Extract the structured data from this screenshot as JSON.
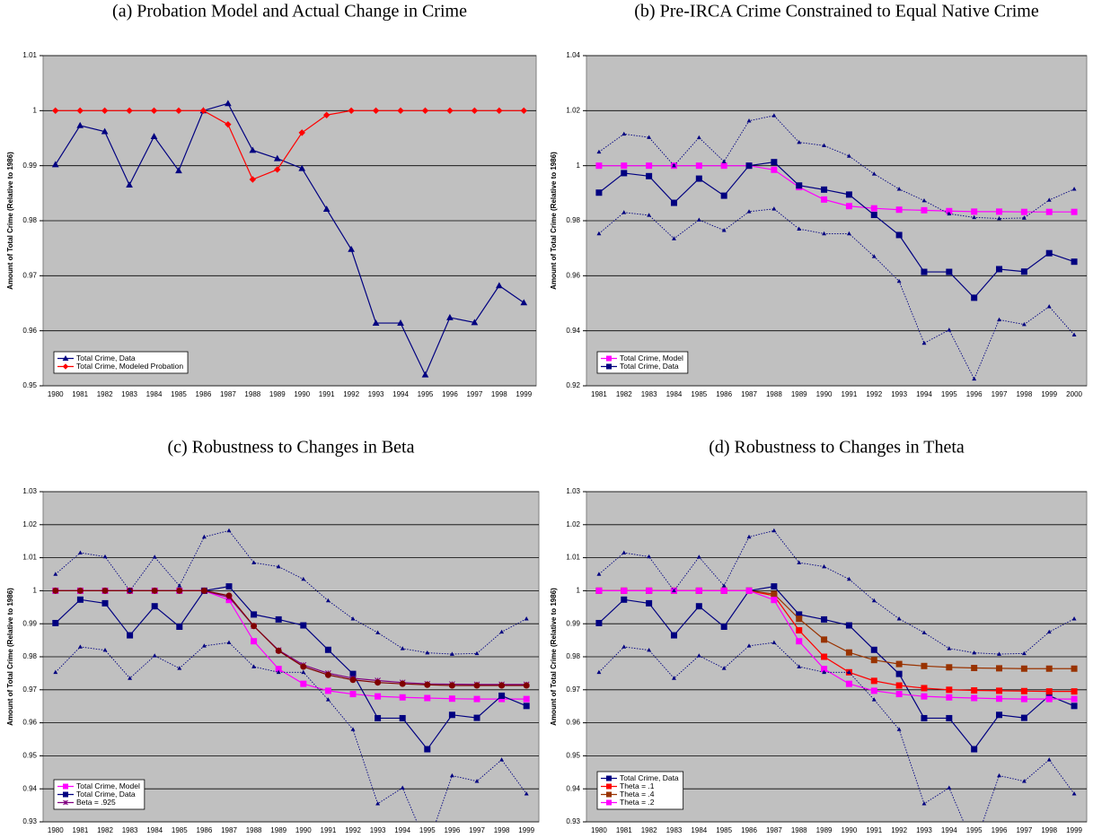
{
  "chart_data": [
    {
      "type": "line",
      "title": "(a) Probation Model and Actual Change in Crime",
      "y_label": "Amount of Total Crime (Relative to 1986)",
      "categories": [
        "1980",
        "1981",
        "1982",
        "1983",
        "1984",
        "1985",
        "1986",
        "1987",
        "1988",
        "1989",
        "1990",
        "1991",
        "1992",
        "1993",
        "1994",
        "1995",
        "1996",
        "1997",
        "1998",
        "1999"
      ],
      "ylim": [
        0.95,
        1.01
      ],
      "yticks": [
        0.95,
        0.96,
        0.97,
        0.98,
        0.99,
        1,
        1.01
      ],
      "grid": true,
      "legend": "lower left",
      "series": [
        {
          "name": "Total Crime, Data",
          "color": "#000080",
          "marker": "triangle",
          "dash": "solid",
          "values": [
            0.9902,
            0.9973,
            0.9962,
            0.9865,
            0.9953,
            0.9891,
            1,
            1.0013,
            0.9928,
            0.9913,
            0.9895,
            0.9821,
            0.9748,
            0.9614,
            0.9614,
            0.952,
            0.9624,
            0.9615,
            0.9682,
            0.9651
          ]
        },
        {
          "name": "Total Crime, Modeled Probation",
          "color": "#ff0000",
          "marker": "diamond",
          "dash": "solid",
          "values": [
            1,
            1,
            1,
            1,
            1,
            1,
            1,
            0.9975,
            0.9875,
            0.9893,
            0.996,
            0.9992,
            1,
            1,
            1,
            1,
            1,
            1,
            1,
            1
          ]
        }
      ]
    },
    {
      "type": "line",
      "title": "(b) Pre-IRCA Crime Constrained to Equal Native Crime",
      "y_label": "Amount of Total Crime (Relative to 1986)",
      "categories": [
        "1981",
        "1982",
        "1983",
        "1984",
        "1985",
        "1986",
        "1987",
        "1988",
        "1989",
        "1990",
        "1991",
        "1992",
        "1993",
        "1994",
        "1995",
        "1996",
        "1997",
        "1998",
        "1999",
        "2000"
      ],
      "ylim": [
        0.92,
        1.04
      ],
      "yticks": [
        0.92,
        0.94,
        0.96,
        0.98,
        1,
        1.02,
        1.04
      ],
      "grid": true,
      "legend": "lower left",
      "series": [
        {
          "name": "Total Crime, Model",
          "color": "#ff00ff",
          "marker": "square",
          "dash": "solid",
          "values": [
            1,
            1,
            1,
            1,
            1,
            1,
            1,
            0.9985,
            0.9922,
            0.9877,
            0.9853,
            0.9845,
            0.984,
            0.9838,
            0.9835,
            0.9833,
            0.9833,
            0.9832,
            0.9832,
            0.9832
          ]
        },
        {
          "name": "Total Crime, Data",
          "color": "#000080",
          "marker": "square",
          "dash": "solid",
          "values": [
            0.9902,
            0.9973,
            0.9962,
            0.9865,
            0.9953,
            0.9891,
            1,
            1.0013,
            0.9928,
            0.9913,
            0.9895,
            0.9821,
            0.9748,
            0.9614,
            0.9614,
            0.952,
            0.9624,
            0.9615,
            0.9682,
            0.9651
          ]
        },
        {
          "color": "#000080",
          "marker": "triangle",
          "dash": "dotted",
          "values": [
            1.005,
            1.0115,
            1.0103,
            1.0,
            1.0102,
            1.0015,
            1.0163,
            1.0182,
            1.0085,
            1.0073,
            1.0035,
            0.997,
            0.9915,
            0.9873,
            0.9825,
            0.9812,
            0.9808,
            0.981,
            0.9875,
            0.9915
          ]
        },
        {
          "color": "#000080",
          "marker": "triangle",
          "dash": "dotted",
          "values": [
            0.9753,
            0.983,
            0.982,
            0.9735,
            0.9803,
            0.9765,
            0.9833,
            0.9843,
            0.977,
            0.9753,
            0.9753,
            0.967,
            0.958,
            0.9355,
            0.9403,
            0.9225,
            0.944,
            0.9423,
            0.9488,
            0.9385
          ]
        }
      ]
    },
    {
      "type": "line",
      "title": "(c) Robustness to Changes in Beta",
      "y_label": "Amount of Total Crime (Relative to 1986)",
      "categories": [
        "1980",
        "1981",
        "1982",
        "1983",
        "1984",
        "1985",
        "1986",
        "1987",
        "1988",
        "1989",
        "1990",
        "1991",
        "1992",
        "1993",
        "1994",
        "1995",
        "1996",
        "1997",
        "1998",
        "1999"
      ],
      "ylim": [
        0.93,
        1.03
      ],
      "yticks": [
        0.93,
        0.94,
        0.95,
        0.96,
        0.97,
        0.98,
        0.99,
        1,
        1.01,
        1.02,
        1.03
      ],
      "grid": true,
      "legend": "lower left",
      "series": [
        {
          "name": "Total Crime, Model",
          "color": "#ff00ff",
          "marker": "square",
          "dash": "solid",
          "values": [
            1,
            1,
            1,
            1,
            1,
            1,
            1,
            0.9972,
            0.9847,
            0.9763,
            0.9718,
            0.9697,
            0.9687,
            0.968,
            0.9677,
            0.9675,
            0.9673,
            0.9672,
            0.9672,
            0.9672
          ]
        },
        {
          "name": "Total Crime, Data",
          "color": "#000080",
          "marker": "square",
          "dash": "solid",
          "values": [
            0.9902,
            0.9973,
            0.9962,
            0.9865,
            0.9953,
            0.9891,
            1,
            1.0013,
            0.9928,
            0.9913,
            0.9895,
            0.9821,
            0.9748,
            0.9614,
            0.9614,
            0.952,
            0.9624,
            0.9615,
            0.9682,
            0.9651
          ]
        },
        {
          "name": "Beta = .925",
          "color": "#800080",
          "marker": "star",
          "dash": "solid",
          "values": [
            1,
            1,
            1,
            1,
            1,
            1,
            1,
            0.998,
            0.9893,
            0.982,
            0.9775,
            0.975,
            0.9735,
            0.9728,
            0.9722,
            0.9718,
            0.9717,
            0.9716,
            0.9716,
            0.9716
          ]
        },
        {
          "color": "#800000",
          "marker": "circle",
          "dash": "solid",
          "values": [
            1,
            1,
            1,
            1,
            1,
            1,
            1,
            0.9985,
            0.9893,
            0.9818,
            0.977,
            0.9745,
            0.973,
            0.9722,
            0.9718,
            0.9715,
            0.9713,
            0.9713,
            0.9713,
            0.9713
          ]
        },
        {
          "color": "#000080",
          "marker": "triangle",
          "dash": "dotted",
          "values": [
            1.005,
            1.0115,
            1.0103,
            1.0,
            1.0102,
            1.0015,
            1.0163,
            1.0182,
            1.0085,
            1.0073,
            1.0035,
            0.997,
            0.9915,
            0.9873,
            0.9825,
            0.9812,
            0.9808,
            0.981,
            0.9875,
            0.9915
          ]
        },
        {
          "color": "#000080",
          "marker": "triangle",
          "dash": "dotted",
          "values": [
            0.9753,
            0.983,
            0.982,
            0.9735,
            0.9803,
            0.9765,
            0.9833,
            0.9843,
            0.977,
            0.9753,
            0.9753,
            0.967,
            0.958,
            0.9355,
            0.9403,
            0.9225,
            0.944,
            0.9423,
            0.9488,
            0.9385
          ]
        }
      ]
    },
    {
      "type": "line",
      "title": "(d) Robustness to Changes in Theta",
      "y_label": "Amount of Total Crime (Relative to 1986)",
      "categories": [
        "1980",
        "1981",
        "1982",
        "1983",
        "1984",
        "1985",
        "1986",
        "1987",
        "1988",
        "1989",
        "1990",
        "1991",
        "1992",
        "1993",
        "1994",
        "1995",
        "1996",
        "1997",
        "1998",
        "1999"
      ],
      "ylim": [
        0.93,
        1.03
      ],
      "yticks": [
        0.93,
        0.94,
        0.95,
        0.96,
        0.97,
        0.98,
        0.99,
        1,
        1.01,
        1.02,
        1.03
      ],
      "grid": true,
      "legend": "lower left",
      "series": [
        {
          "name": "Total Crime, Data",
          "color": "#000080",
          "marker": "square",
          "dash": "solid",
          "values": [
            0.9902,
            0.9973,
            0.9962,
            0.9865,
            0.9953,
            0.9891,
            1,
            1.0013,
            0.9928,
            0.9913,
            0.9895,
            0.9821,
            0.9748,
            0.9614,
            0.9614,
            0.952,
            0.9624,
            0.9615,
            0.9682,
            0.9651
          ]
        },
        {
          "name": "Theta = .1",
          "color": "#ff0000",
          "marker": "square",
          "dash": "solid",
          "values": [
            1,
            1,
            1,
            1,
            1,
            1,
            1,
            0.9985,
            0.988,
            0.98,
            0.9753,
            0.9727,
            0.9713,
            0.9705,
            0.97,
            0.9698,
            0.9697,
            0.9696,
            0.9695,
            0.9695
          ]
        },
        {
          "name": "Theta = .4",
          "color": "#993300",
          "marker": "square",
          "dash": "solid",
          "values": [
            1,
            1,
            1,
            1,
            1,
            1,
            1,
            0.999,
            0.9915,
            0.9852,
            0.9813,
            0.979,
            0.9778,
            0.9772,
            0.9768,
            0.9766,
            0.9765,
            0.9764,
            0.9764,
            0.9764
          ]
        },
        {
          "name": "Theta = .2",
          "color": "#ff00ff",
          "marker": "square",
          "dash": "solid",
          "values": [
            1,
            1,
            1,
            1,
            1,
            1,
            1,
            0.9972,
            0.9847,
            0.9763,
            0.9718,
            0.9697,
            0.9687,
            0.968,
            0.9677,
            0.9675,
            0.9673,
            0.9672,
            0.9672,
            0.9672
          ]
        },
        {
          "color": "#000080",
          "marker": "triangle",
          "dash": "dotted",
          "values": [
            1.005,
            1.0115,
            1.0103,
            1.0,
            1.0102,
            1.0015,
            1.0163,
            1.0182,
            1.0085,
            1.0073,
            1.0035,
            0.997,
            0.9915,
            0.9873,
            0.9825,
            0.9812,
            0.9808,
            0.981,
            0.9875,
            0.9915
          ]
        },
        {
          "color": "#000080",
          "marker": "triangle",
          "dash": "dotted",
          "values": [
            0.9753,
            0.983,
            0.982,
            0.9735,
            0.9803,
            0.9765,
            0.9833,
            0.9843,
            0.977,
            0.9753,
            0.9753,
            0.967,
            0.958,
            0.9355,
            0.9403,
            0.9225,
            0.944,
            0.9423,
            0.9488,
            0.9385
          ]
        }
      ]
    }
  ]
}
